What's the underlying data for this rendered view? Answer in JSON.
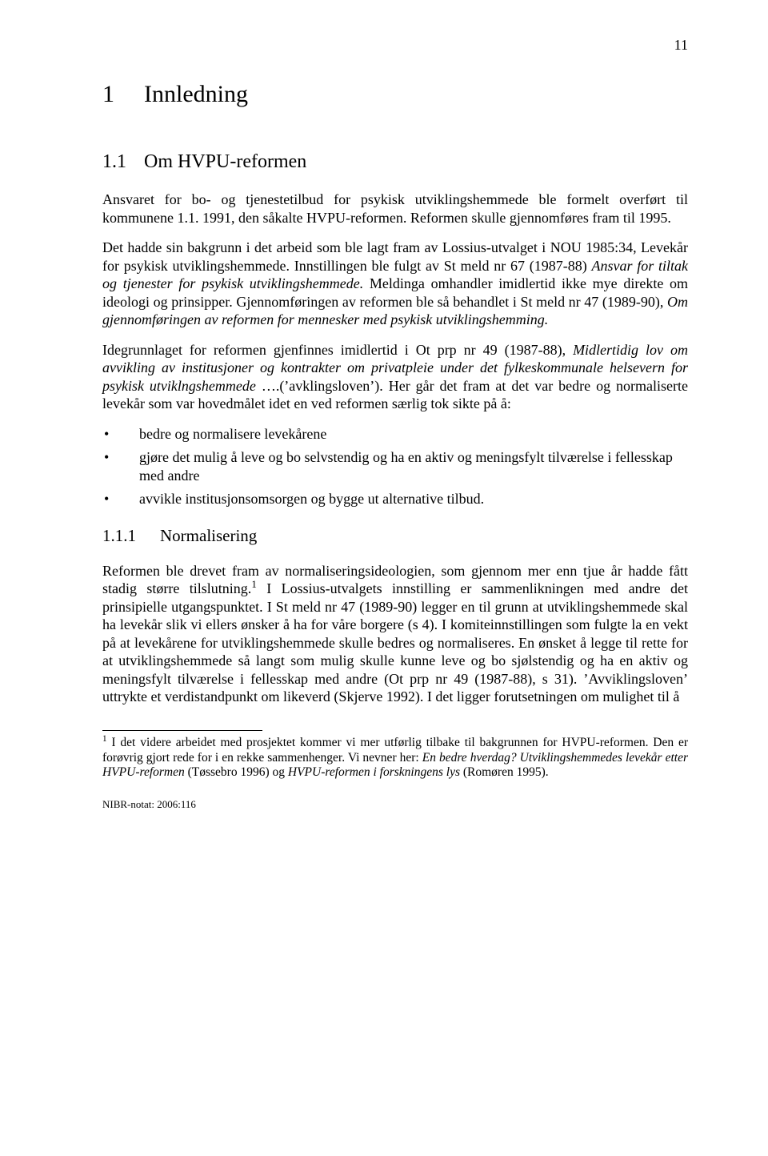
{
  "colors": {
    "background": "#ffffff",
    "text": "#000000",
    "rule": "#000000"
  },
  "typography": {
    "body_family": "Times New Roman",
    "body_size_pt": 12,
    "h1_size_pt": 22,
    "h2_size_pt": 18,
    "h3_size_pt": 15,
    "footnote_size_pt": 10
  },
  "page_number": "11",
  "chapter": {
    "number": "1",
    "title": "Innledning"
  },
  "section": {
    "number": "1.1",
    "title": "Om HVPU-reformen"
  },
  "paragraphs": {
    "p1": "Ansvaret for bo- og tjenestetilbud for psykisk utviklingshemmede ble formelt overført til kommunene 1.1. 1991, den såkalte HVPU-reformen. Reformen skulle gjennomføres fram til 1995.",
    "p2_html": "Det hadde sin bakgrunn i det arbeid som ble lagt fram av Lossius-utvalget i NOU 1985:34, Levekår for psykisk utviklingshemmede. Innstillingen ble fulgt av St meld nr 67 (1987-88) <i>Ansvar for tiltak og tjenester for psykisk utviklingshemmede.</i> Meldinga omhandler imidlertid ikke mye direkte om ideologi og prinsipper. Gjennomføringen av reformen ble så behandlet i St meld nr 47 (1989-90), <i>Om gjennomføringen av reformen for mennesker med psykisk utviklingshemming.</i>",
    "p3_html": "Idegrunnlaget for reformen gjenfinnes imidlertid i Ot prp nr 49 (1987-88), <i>Midlertidig lov om avvikling av institusjoner og kontrakter om privatpleie under det fylkeskommunale helsevern for psykisk utviklngshemmede</i> ….(’avklingsloven’). Her går det fram at det var bedre og normaliserte levekår som var hovedmålet idet en ved reformen særlig tok sikte på å:",
    "p4_html": "Reformen ble drevet fram av normaliseringsideologien, som gjennom mer enn tjue år hadde fått stadig større tilslutning.<sup>1</sup> I Lossius-utvalgets innstilling er sammenlikningen med andre det prinsipielle utgangspunktet. I St meld nr 47 (1989-90) legger en til grunn at utviklingshemmede skal ha levekår slik vi ellers ønsker å ha for våre borgere (s 4). I komiteinnstillingen som fulgte la en vekt på at levekårene for utviklingshemmede skulle bedres og normaliseres. En ønsket å legge til rette for at utviklingshemmede så langt som mulig skulle kunne leve og bo sjølstendig og ha en aktiv og meningsfylt tilværelse i fellesskap med andre (Ot prp nr 49 (1987-88), s 31). ’Avviklingsloven’ uttrykte et verdistandpunkt om likeverd (Skjerve 1992). I det ligger forutsetningen om mulighet til å"
  },
  "bullets": [
    "bedre og normalisere levekårene",
    "gjøre det mulig å leve og bo selvstendig og ha en aktiv og meningsfylt tilværelse i fellesskap med andre",
    "avvikle institusjonsomsorgen og bygge ut alternative tilbud."
  ],
  "subsection": {
    "number": "1.1.1",
    "title": "Normalisering"
  },
  "footnote_html": "<sup>1</sup> I det videre arbeidet med prosjektet kommer vi mer utførlig tilbake til bakgrunnen for HVPU-reformen. Den er forøvrig gjort rede for i en rekke sammenhenger. Vi nevner her: <i>En bedre hverdag? Utviklingshemmedes levekår etter HVPU-reformen</i> (Tøssebro 1996) og <i>HVPU-reformen i forskningens lys</i> (Romøren 1995).",
  "footer_ref": "NIBR-notat: 2006:116"
}
